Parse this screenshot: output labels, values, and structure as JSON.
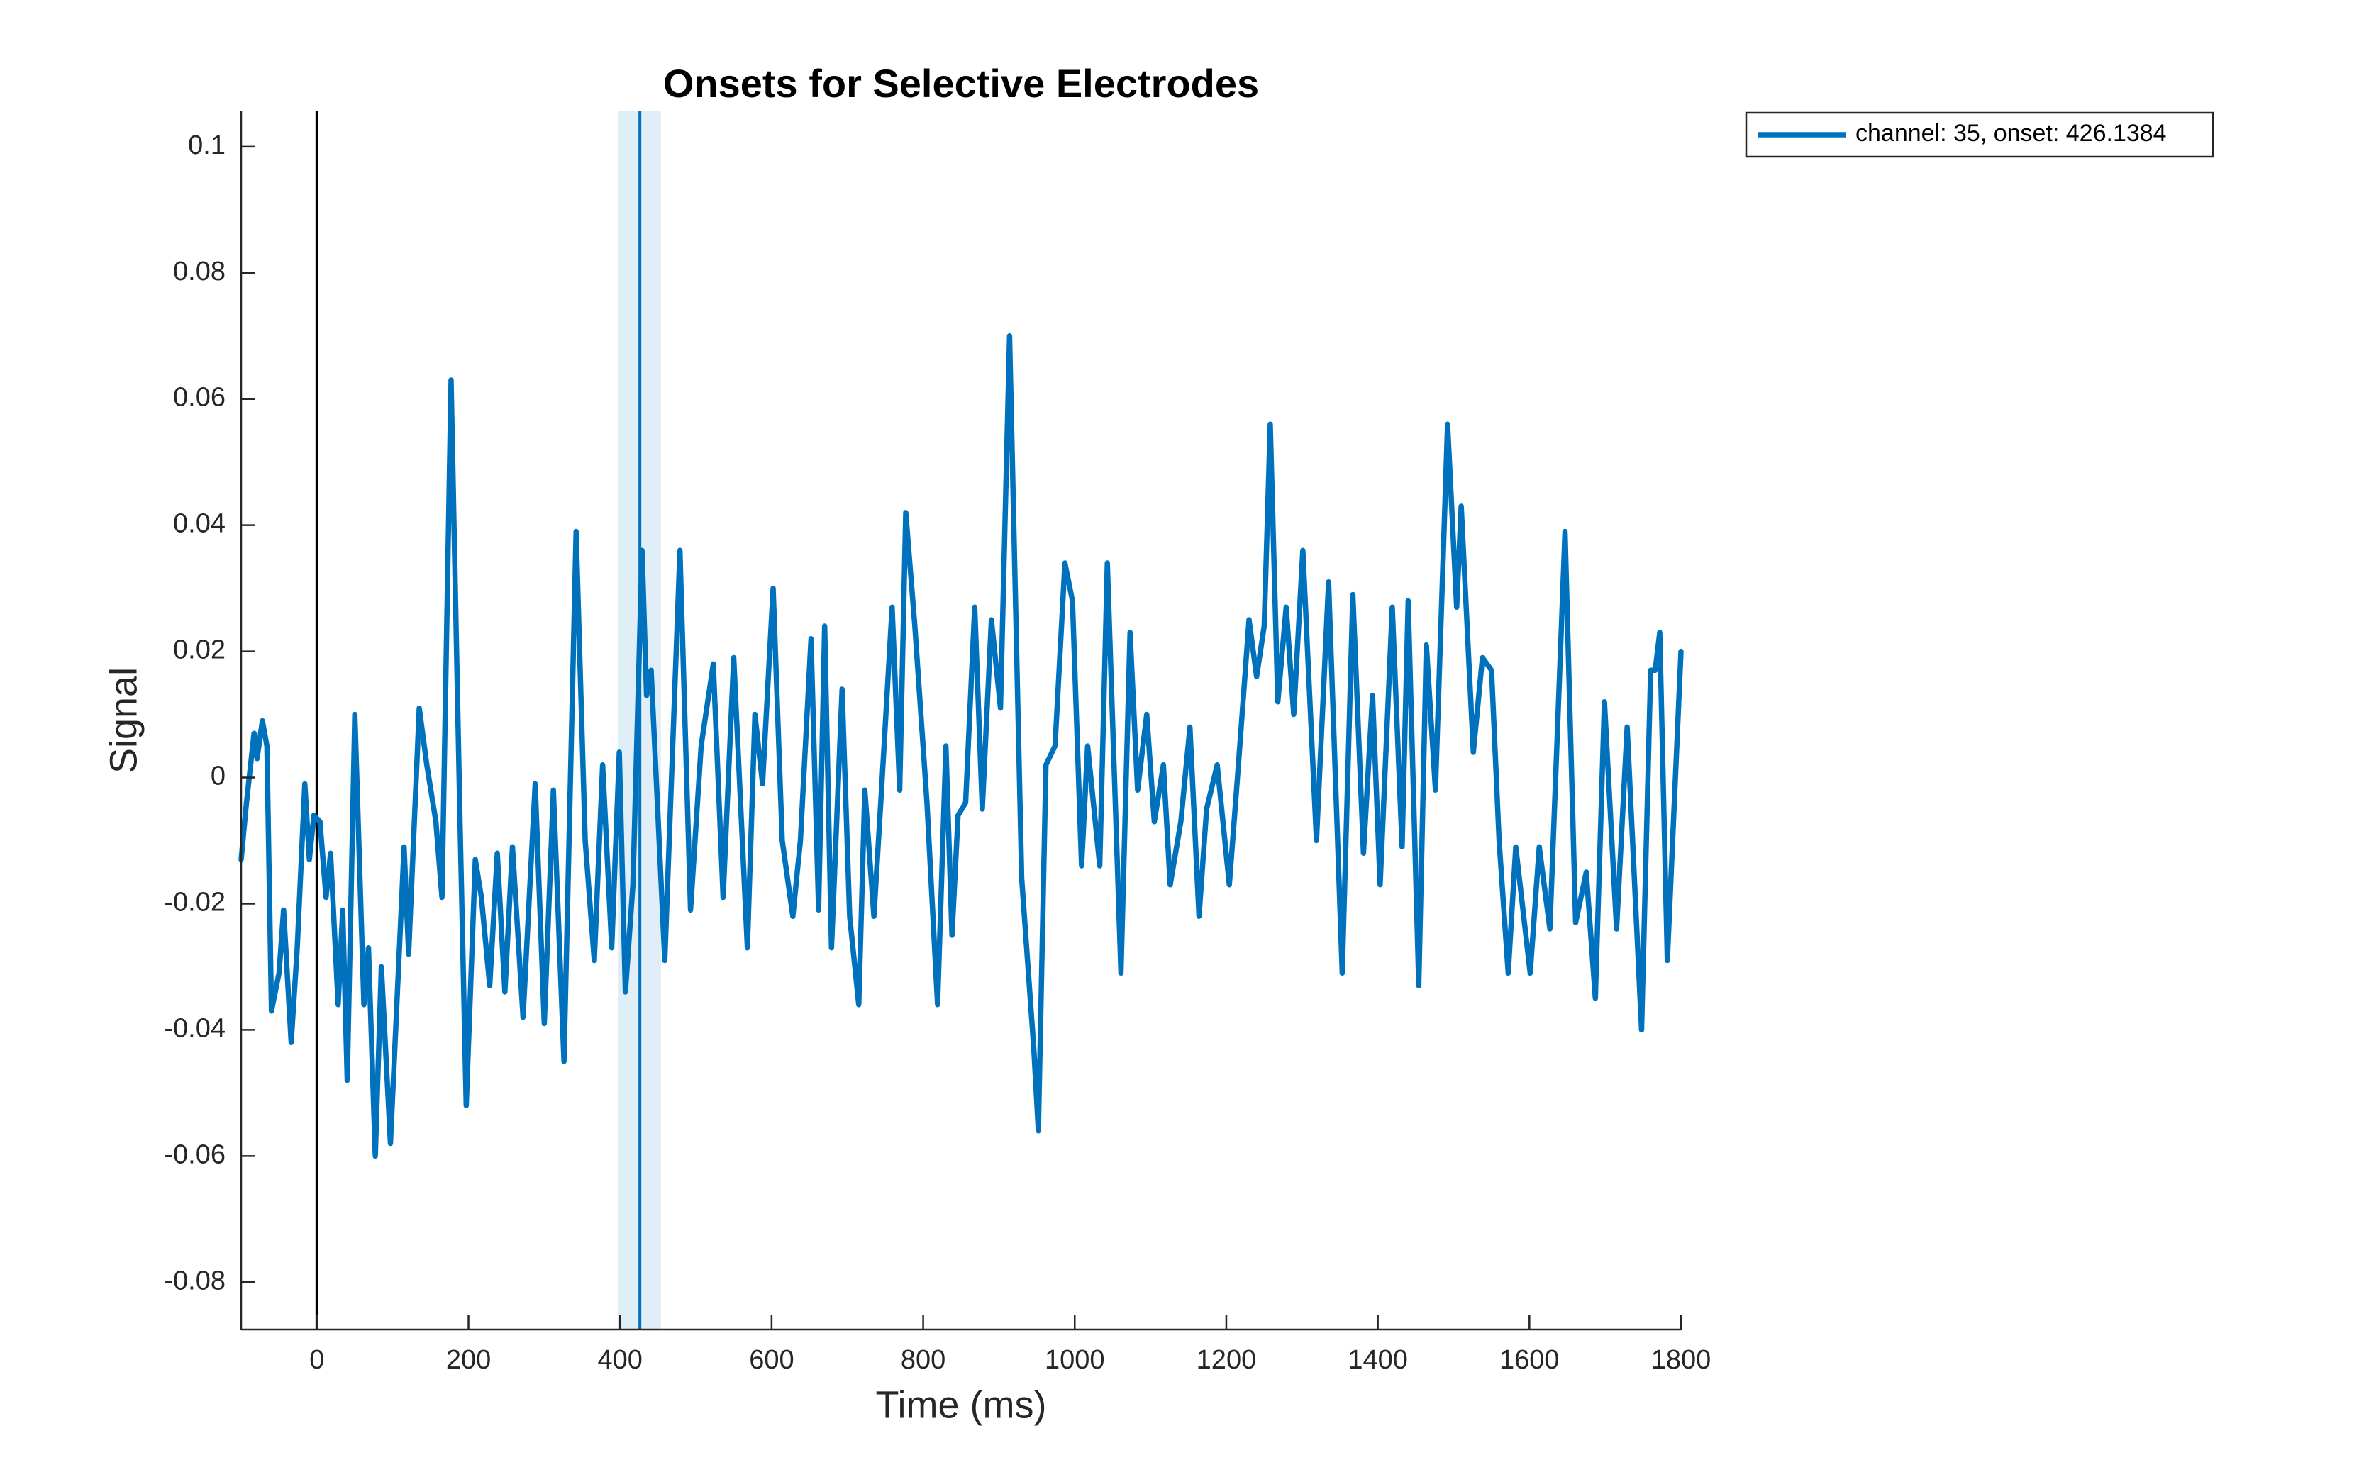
{
  "chart_data": {
    "type": "line",
    "title": "Onsets for Selective Electrodes",
    "x_label": "Time (ms)",
    "y_label": "Signal",
    "xlim": [
      -100,
      1800
    ],
    "ylim": [
      -0.0875,
      0.1056
    ],
    "xticks": [
      0,
      200,
      400,
      600,
      800,
      1000,
      1200,
      1400,
      1600,
      1800
    ],
    "yticks": [
      -0.08,
      -0.06,
      -0.04,
      -0.02,
      0,
      0.02,
      0.04,
      0.06,
      0.08,
      0.1
    ],
    "reference_line_x": 0,
    "onset": 426.1384,
    "onset_band": [
      398,
      454
    ],
    "legend_position": "outside-top-right",
    "x": [
      -100,
      -93,
      -83,
      -79,
      -72,
      -66,
      -60,
      -50,
      -44,
      -34,
      -26,
      -16,
      -10,
      -4,
      4,
      12,
      18,
      28,
      34,
      40,
      50,
      62,
      68,
      77,
      85,
      97,
      115,
      121,
      135,
      145,
      157,
      165,
      177,
      189,
      197,
      209,
      217,
      228,
      238,
      248,
      258,
      272,
      288,
      300,
      312,
      326,
      342,
      354,
      366,
      377,
      389,
      399,
      407,
      417,
      429,
      435,
      441,
      459,
      479,
      493,
      507,
      523,
      536,
      550,
      568,
      578,
      588,
      602,
      614,
      628,
      638,
      652,
      662,
      670,
      679,
      693,
      703,
      715,
      723,
      735,
      745,
      759,
      769,
      777,
      789,
      805,
      819,
      830,
      838,
      846,
      856,
      868,
      878,
      890,
      902,
      914,
      930,
      946,
      952,
      962,
      974,
      987,
      997,
      1009,
      1017,
      1033,
      1043,
      1061,
      1073,
      1083,
      1095,
      1105,
      1117,
      1126,
      1140,
      1152,
      1164,
      1174,
      1188,
      1204,
      1216,
      1230,
      1240,
      1250,
      1258,
      1268,
      1279,
      1289,
      1301,
      1319,
      1335,
      1353,
      1367,
      1381,
      1393,
      1403,
      1419,
      1432,
      1440,
      1454,
      1464,
      1476,
      1492,
      1504,
      1510,
      1526,
      1538,
      1550,
      1560,
      1572,
      1582,
      1601,
      1613,
      1627,
      1647,
      1661,
      1675,
      1687,
      1699,
      1715,
      1729,
      1748,
      1760,
      1766,
      1772,
      1782,
      1800
    ],
    "series": [
      {
        "name": "channel: 35, onset: 426.1384",
        "color": "#0072BD",
        "values": [
          -0.013,
          -0.004,
          0.007,
          0.003,
          0.009,
          0.005,
          -0.037,
          -0.031,
          -0.021,
          -0.042,
          -0.027,
          -0.001,
          -0.013,
          -0.006,
          -0.007,
          -0.019,
          -0.012,
          -0.036,
          -0.021,
          -0.048,
          0.01,
          -0.036,
          -0.027,
          -0.06,
          -0.03,
          -0.058,
          -0.011,
          -0.028,
          0.011,
          0.002,
          -0.007,
          -0.019,
          0.063,
          -0.008,
          -0.052,
          -0.013,
          -0.019,
          -0.033,
          -0.012,
          -0.034,
          -0.011,
          -0.038,
          -0.001,
          -0.039,
          -0.002,
          -0.045,
          0.039,
          -0.01,
          -0.029,
          0.002,
          -0.027,
          0.004,
          -0.034,
          -0.017,
          0.036,
          0.013,
          0.017,
          -0.029,
          0.036,
          -0.021,
          0.005,
          0.018,
          -0.019,
          0.019,
          -0.027,
          0.01,
          -0.001,
          0.03,
          -0.01,
          -0.022,
          -0.01,
          0.022,
          -0.021,
          0.024,
          -0.027,
          0.014,
          -0.022,
          -0.036,
          -0.002,
          -0.022,
          -0.002,
          0.027,
          -0.002,
          0.042,
          0.024,
          -0.004,
          -0.036,
          0.005,
          -0.025,
          -0.006,
          -0.004,
          0.027,
          -0.005,
          0.025,
          0.011,
          0.07,
          -0.016,
          -0.043,
          -0.056,
          0.002,
          0.005,
          0.034,
          0.028,
          -0.014,
          0.005,
          -0.014,
          0.034,
          -0.031,
          0.023,
          -0.002,
          0.01,
          -0.007,
          0.002,
          -0.017,
          -0.007,
          0.008,
          -0.022,
          -0.005,
          0.002,
          -0.017,
          0.002,
          0.025,
          0.016,
          0.024,
          0.056,
          0.012,
          0.027,
          0.01,
          0.036,
          -0.01,
          0.031,
          -0.031,
          0.029,
          -0.012,
          0.013,
          -0.017,
          0.027,
          -0.011,
          0.028,
          -0.033,
          0.021,
          -0.002,
          0.056,
          0.027,
          0.043,
          0.004,
          0.019,
          0.017,
          -0.01,
          -0.031,
          -0.011,
          -0.031,
          -0.011,
          -0.024,
          0.039,
          -0.023,
          -0.015,
          -0.035,
          0.012,
          -0.024,
          0.008,
          -0.04,
          0.017,
          0.017,
          0.023,
          -0.029,
          0.02
        ]
      }
    ]
  }
}
